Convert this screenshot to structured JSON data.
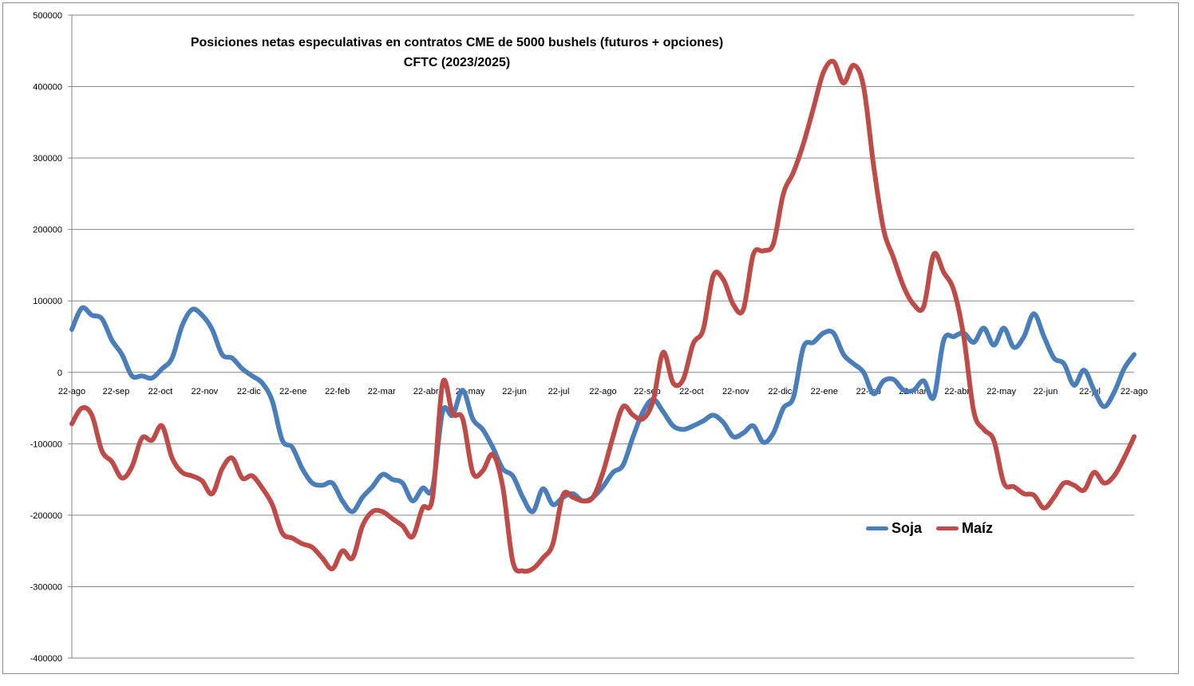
{
  "chart_data": {
    "type": "line",
    "title": "Posiciones netas especulativas en contratos CME de 5000 bushels (futuros + opciones)",
    "subtitle": "CFTC (2023/2025)",
    "xlabel": "",
    "ylabel": "",
    "ylim": [
      -400000,
      500000
    ],
    "yticks": [
      "500000",
      "400000",
      "300000",
      "200000",
      "100000",
      "0",
      "-100000",
      "-200000",
      "-300000",
      "-400000"
    ],
    "xticks": [
      "22-ago",
      "22-sep",
      "22-oct",
      "22-nov",
      "22-dic",
      "22-ene",
      "22-feb",
      "22-mar",
      "22-abr",
      "22-may",
      "22-jun",
      "22-jul",
      "22-ago",
      "22-sep",
      "22-oct",
      "22-nov",
      "22-dic",
      "22-ene",
      "22-feb",
      "22-mar",
      "22-abr",
      "22-may",
      "22-jun",
      "22-jul",
      "22-ago"
    ],
    "grid": true,
    "legend_position": "bottom-right",
    "series": [
      {
        "name": "Soja",
        "color": "#4a7ebb",
        "values": [
          60000,
          90000,
          80000,
          75000,
          45000,
          25000,
          -5000,
          -5000,
          -8000,
          5000,
          20000,
          65000,
          88000,
          80000,
          60000,
          25000,
          20000,
          5000,
          -5000,
          -15000,
          -40000,
          -95000,
          -105000,
          -135000,
          -155000,
          -158000,
          -155000,
          -180000,
          -195000,
          -175000,
          -160000,
          -143000,
          -150000,
          -155000,
          -180000,
          -162000,
          -162000,
          -55000,
          -60000,
          -25000,
          -65000,
          -80000,
          -105000,
          -135000,
          -145000,
          -175000,
          -195000,
          -163000,
          -185000,
          -175000,
          -170000,
          -180000,
          -175000,
          -160000,
          -140000,
          -130000,
          -90000,
          -55000,
          -38000,
          -55000,
          -75000,
          -80000,
          -75000,
          -68000,
          -60000,
          -70000,
          -90000,
          -85000,
          -75000,
          -98000,
          -85000,
          -50000,
          -35000,
          35000,
          42000,
          55000,
          55000,
          25000,
          12000,
          0,
          -30000,
          -12000,
          -10000,
          -25000,
          -25000,
          -12000,
          -35000,
          45000,
          50000,
          55000,
          42000,
          62000,
          38000,
          62000,
          35000,
          50000,
          82000,
          50000,
          20000,
          12000,
          -18000,
          3000,
          -25000,
          -48000,
          -28000,
          5000,
          25000
        ]
      },
      {
        "name": "Maíz",
        "color": "#be4b48",
        "values": [
          -72000,
          -50000,
          -60000,
          -110000,
          -125000,
          -148000,
          -132000,
          -92000,
          -95000,
          -75000,
          -120000,
          -140000,
          -145000,
          -152000,
          -170000,
          -135000,
          -120000,
          -148000,
          -145000,
          -162000,
          -185000,
          -225000,
          -232000,
          -240000,
          -245000,
          -260000,
          -275000,
          -250000,
          -260000,
          -215000,
          -195000,
          -195000,
          -205000,
          -215000,
          -230000,
          -190000,
          -175000,
          -15000,
          -58000,
          -65000,
          -140000,
          -138000,
          -115000,
          -160000,
          -265000,
          -278000,
          -275000,
          -260000,
          -240000,
          -172000,
          -175000,
          -180000,
          -175000,
          -140000,
          -90000,
          -48000,
          -60000,
          -65000,
          -40000,
          28000,
          -15000,
          -10000,
          40000,
          60000,
          135000,
          130000,
          95000,
          88000,
          165000,
          170000,
          180000,
          250000,
          280000,
          320000,
          370000,
          420000,
          435000,
          405000,
          430000,
          400000,
          290000,
          200000,
          160000,
          120000,
          95000,
          92000,
          165000,
          140000,
          115000,
          50000,
          -55000,
          -80000,
          -95000,
          -155000,
          -160000,
          -170000,
          -172000,
          -190000,
          -175000,
          -155000,
          -158000,
          -165000,
          -140000,
          -155000,
          -145000,
          -120000,
          -90000
        ]
      }
    ]
  }
}
